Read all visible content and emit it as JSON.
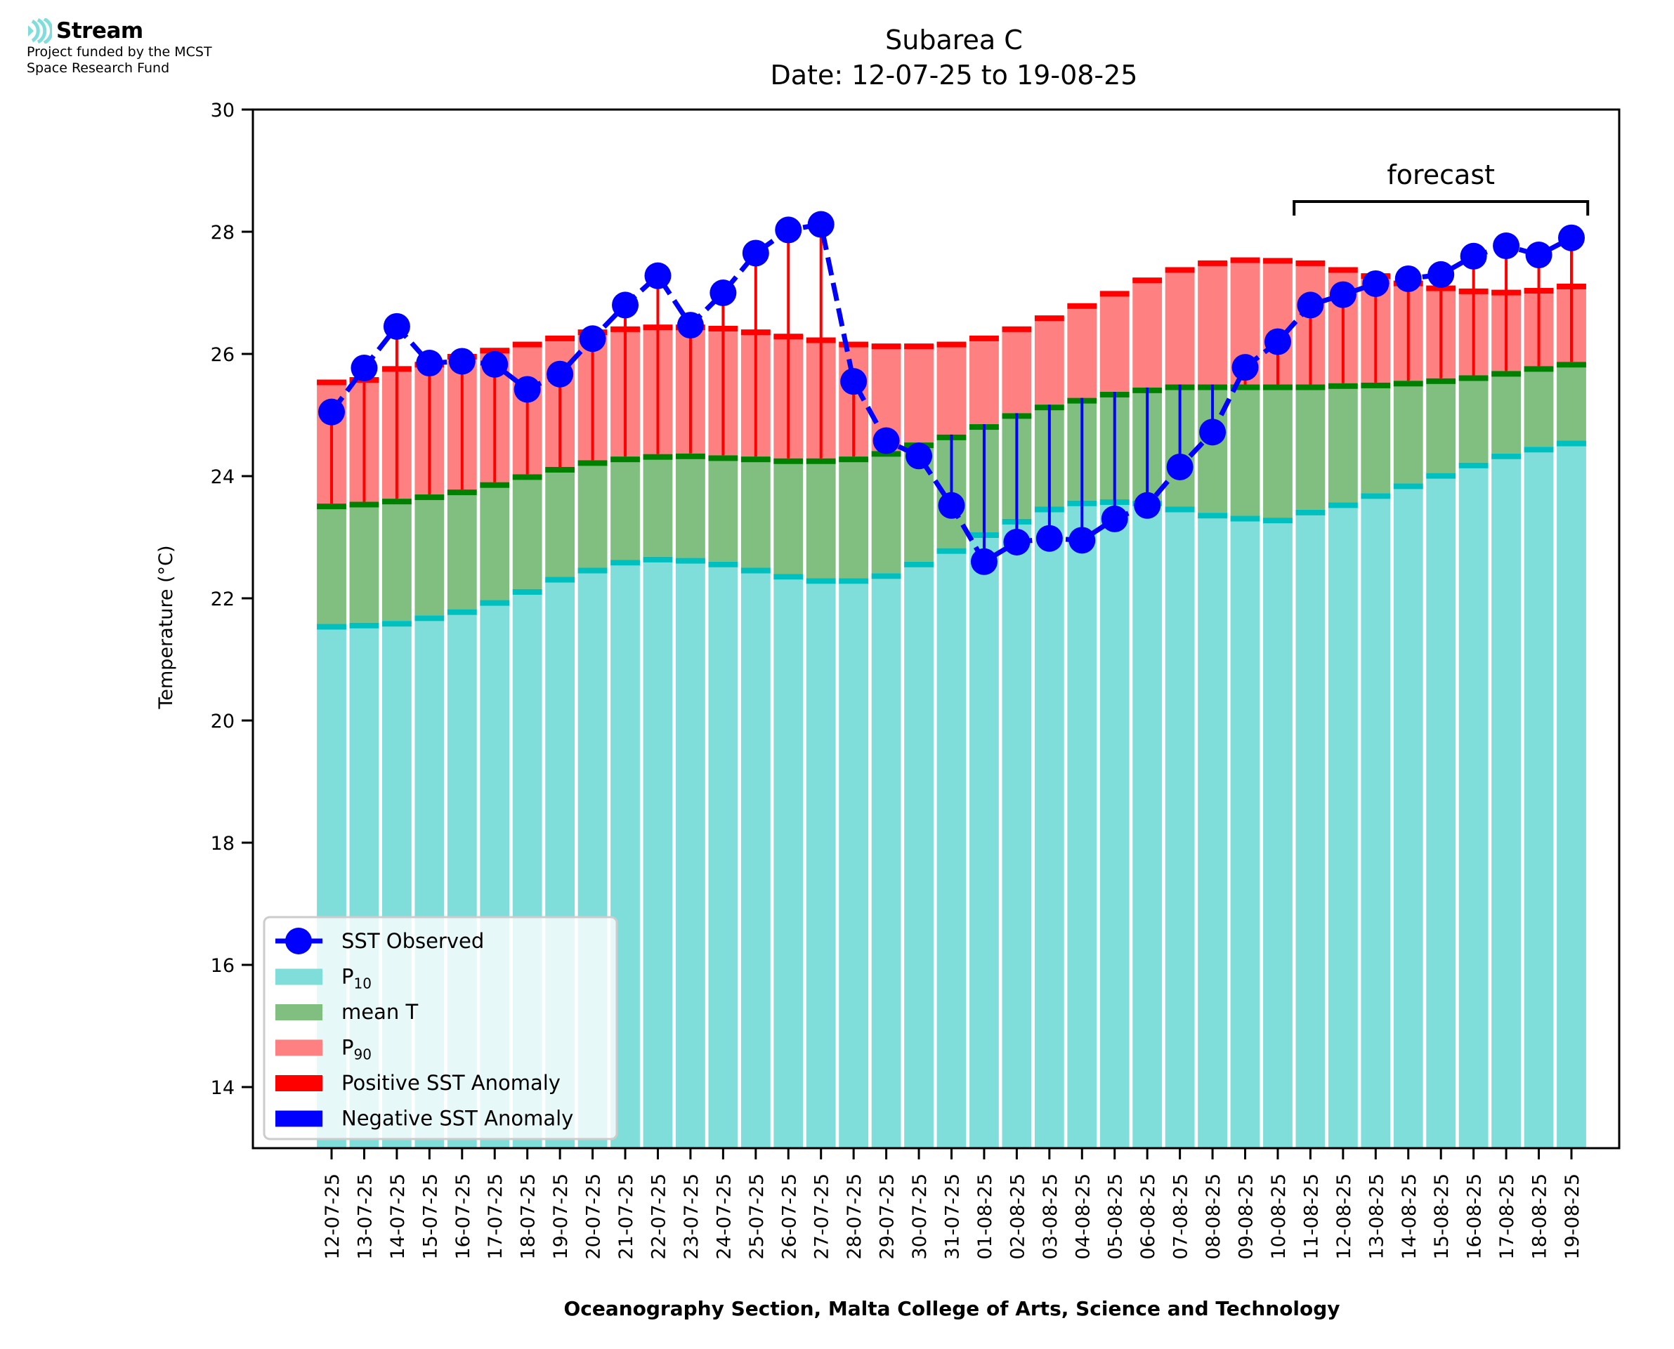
{
  "logo": {
    "name": "Stream",
    "funding_line1": "Project funded by the MCST",
    "funding_line2": "Space Research Fund",
    "icon": "stream-waves-icon",
    "icon_color": "#80deda"
  },
  "chart_data": {
    "type": "bar",
    "title_line1": "Subarea C",
    "title_line2": "Date: 12-07-25 to 19-08-25",
    "xlabel": "Oceanography Section, Malta College of Arts, Science and Technology",
    "ylabel": "Temperature (°C)",
    "ylim": [
      13,
      30
    ],
    "yticks": [
      14,
      16,
      18,
      20,
      22,
      24,
      26,
      28,
      30
    ],
    "grid": false,
    "legend_position": "lower-left",
    "annotation": {
      "text": "forecast",
      "start": "11-08-25",
      "end": "19-08-25"
    },
    "colors": {
      "p10": "#80deda",
      "p10_edge": "#00bfbf",
      "mean": "#80bf80",
      "mean_edge": "#008000",
      "p90": "#ff8080",
      "p90_edge": "#ff0000",
      "observed": "#0000ff",
      "positive_anomaly": "#ff0000",
      "negative_anomaly": "#0000ff"
    },
    "legend": [
      {
        "label": "SST Observed",
        "kind": "line-marker",
        "color": "#0000ff"
      },
      {
        "label": "P",
        "sub": "10",
        "kind": "patch",
        "color": "#80deda"
      },
      {
        "label": "mean T",
        "kind": "patch",
        "color": "#80bf80"
      },
      {
        "label": "P",
        "sub": "90",
        "kind": "patch",
        "color": "#ff8080"
      },
      {
        "label": "Positive SST Anomaly",
        "kind": "patch",
        "color": "#ff0000"
      },
      {
        "label": "Negative SST Anomaly",
        "kind": "patch",
        "color": "#0000ff"
      }
    ],
    "categories": [
      "12-07-25",
      "13-07-25",
      "14-07-25",
      "15-07-25",
      "16-07-25",
      "17-07-25",
      "18-07-25",
      "19-07-25",
      "20-07-25",
      "21-07-25",
      "22-07-25",
      "23-07-25",
      "24-07-25",
      "25-07-25",
      "26-07-25",
      "27-07-25",
      "28-07-25",
      "29-07-25",
      "30-07-25",
      "31-07-25",
      "01-08-25",
      "02-08-25",
      "03-08-25",
      "04-08-25",
      "05-08-25",
      "06-08-25",
      "07-08-25",
      "08-08-25",
      "09-08-25",
      "10-08-25",
      "11-08-25",
      "12-08-25",
      "13-08-25",
      "14-08-25",
      "15-08-25",
      "16-08-25",
      "17-08-25",
      "18-08-25",
      "19-08-25"
    ],
    "series": [
      {
        "name": "P10",
        "values": [
          21.58,
          21.6,
          21.63,
          21.72,
          21.82,
          21.97,
          22.15,
          22.35,
          22.5,
          22.63,
          22.68,
          22.66,
          22.6,
          22.5,
          22.4,
          22.33,
          22.33,
          22.41,
          22.6,
          22.82,
          23.08,
          23.3,
          23.5,
          23.6,
          23.62,
          23.6,
          23.5,
          23.4,
          23.35,
          23.32,
          23.45,
          23.57,
          23.72,
          23.88,
          24.05,
          24.22,
          24.37,
          24.48,
          24.58
        ]
      },
      {
        "name": "mean T",
        "values": [
          23.55,
          23.58,
          23.63,
          23.7,
          23.78,
          23.9,
          24.03,
          24.15,
          24.26,
          24.32,
          24.36,
          24.37,
          24.34,
          24.32,
          24.29,
          24.29,
          24.32,
          24.41,
          24.55,
          24.68,
          24.85,
          25.03,
          25.17,
          25.28,
          25.38,
          25.45,
          25.5,
          25.5,
          25.5,
          25.5,
          25.5,
          25.52,
          25.53,
          25.56,
          25.6,
          25.65,
          25.72,
          25.8,
          25.87
        ]
      },
      {
        "name": "P90",
        "values": [
          25.58,
          25.62,
          25.8,
          25.87,
          26.0,
          26.1,
          26.2,
          26.3,
          26.4,
          26.45,
          26.48,
          26.48,
          26.46,
          26.4,
          26.33,
          26.27,
          26.2,
          26.17,
          26.17,
          26.2,
          26.3,
          26.45,
          26.63,
          26.83,
          27.03,
          27.25,
          27.42,
          27.53,
          27.58,
          27.57,
          27.53,
          27.42,
          27.32,
          27.2,
          27.12,
          27.07,
          27.05,
          27.08,
          27.15
        ]
      },
      {
        "name": "SST Observed",
        "values": [
          25.05,
          25.77,
          26.45,
          25.85,
          25.88,
          25.83,
          25.42,
          25.67,
          26.25,
          26.8,
          27.28,
          26.47,
          27.0,
          27.65,
          28.03,
          28.12,
          25.55,
          24.58,
          24.33,
          23.52,
          22.6,
          22.92,
          22.98,
          22.95,
          23.3,
          23.52,
          24.15,
          24.72,
          25.78,
          26.2,
          26.8,
          26.97,
          27.15,
          27.23,
          27.3,
          27.6,
          27.77,
          27.62,
          27.9
        ]
      }
    ]
  }
}
